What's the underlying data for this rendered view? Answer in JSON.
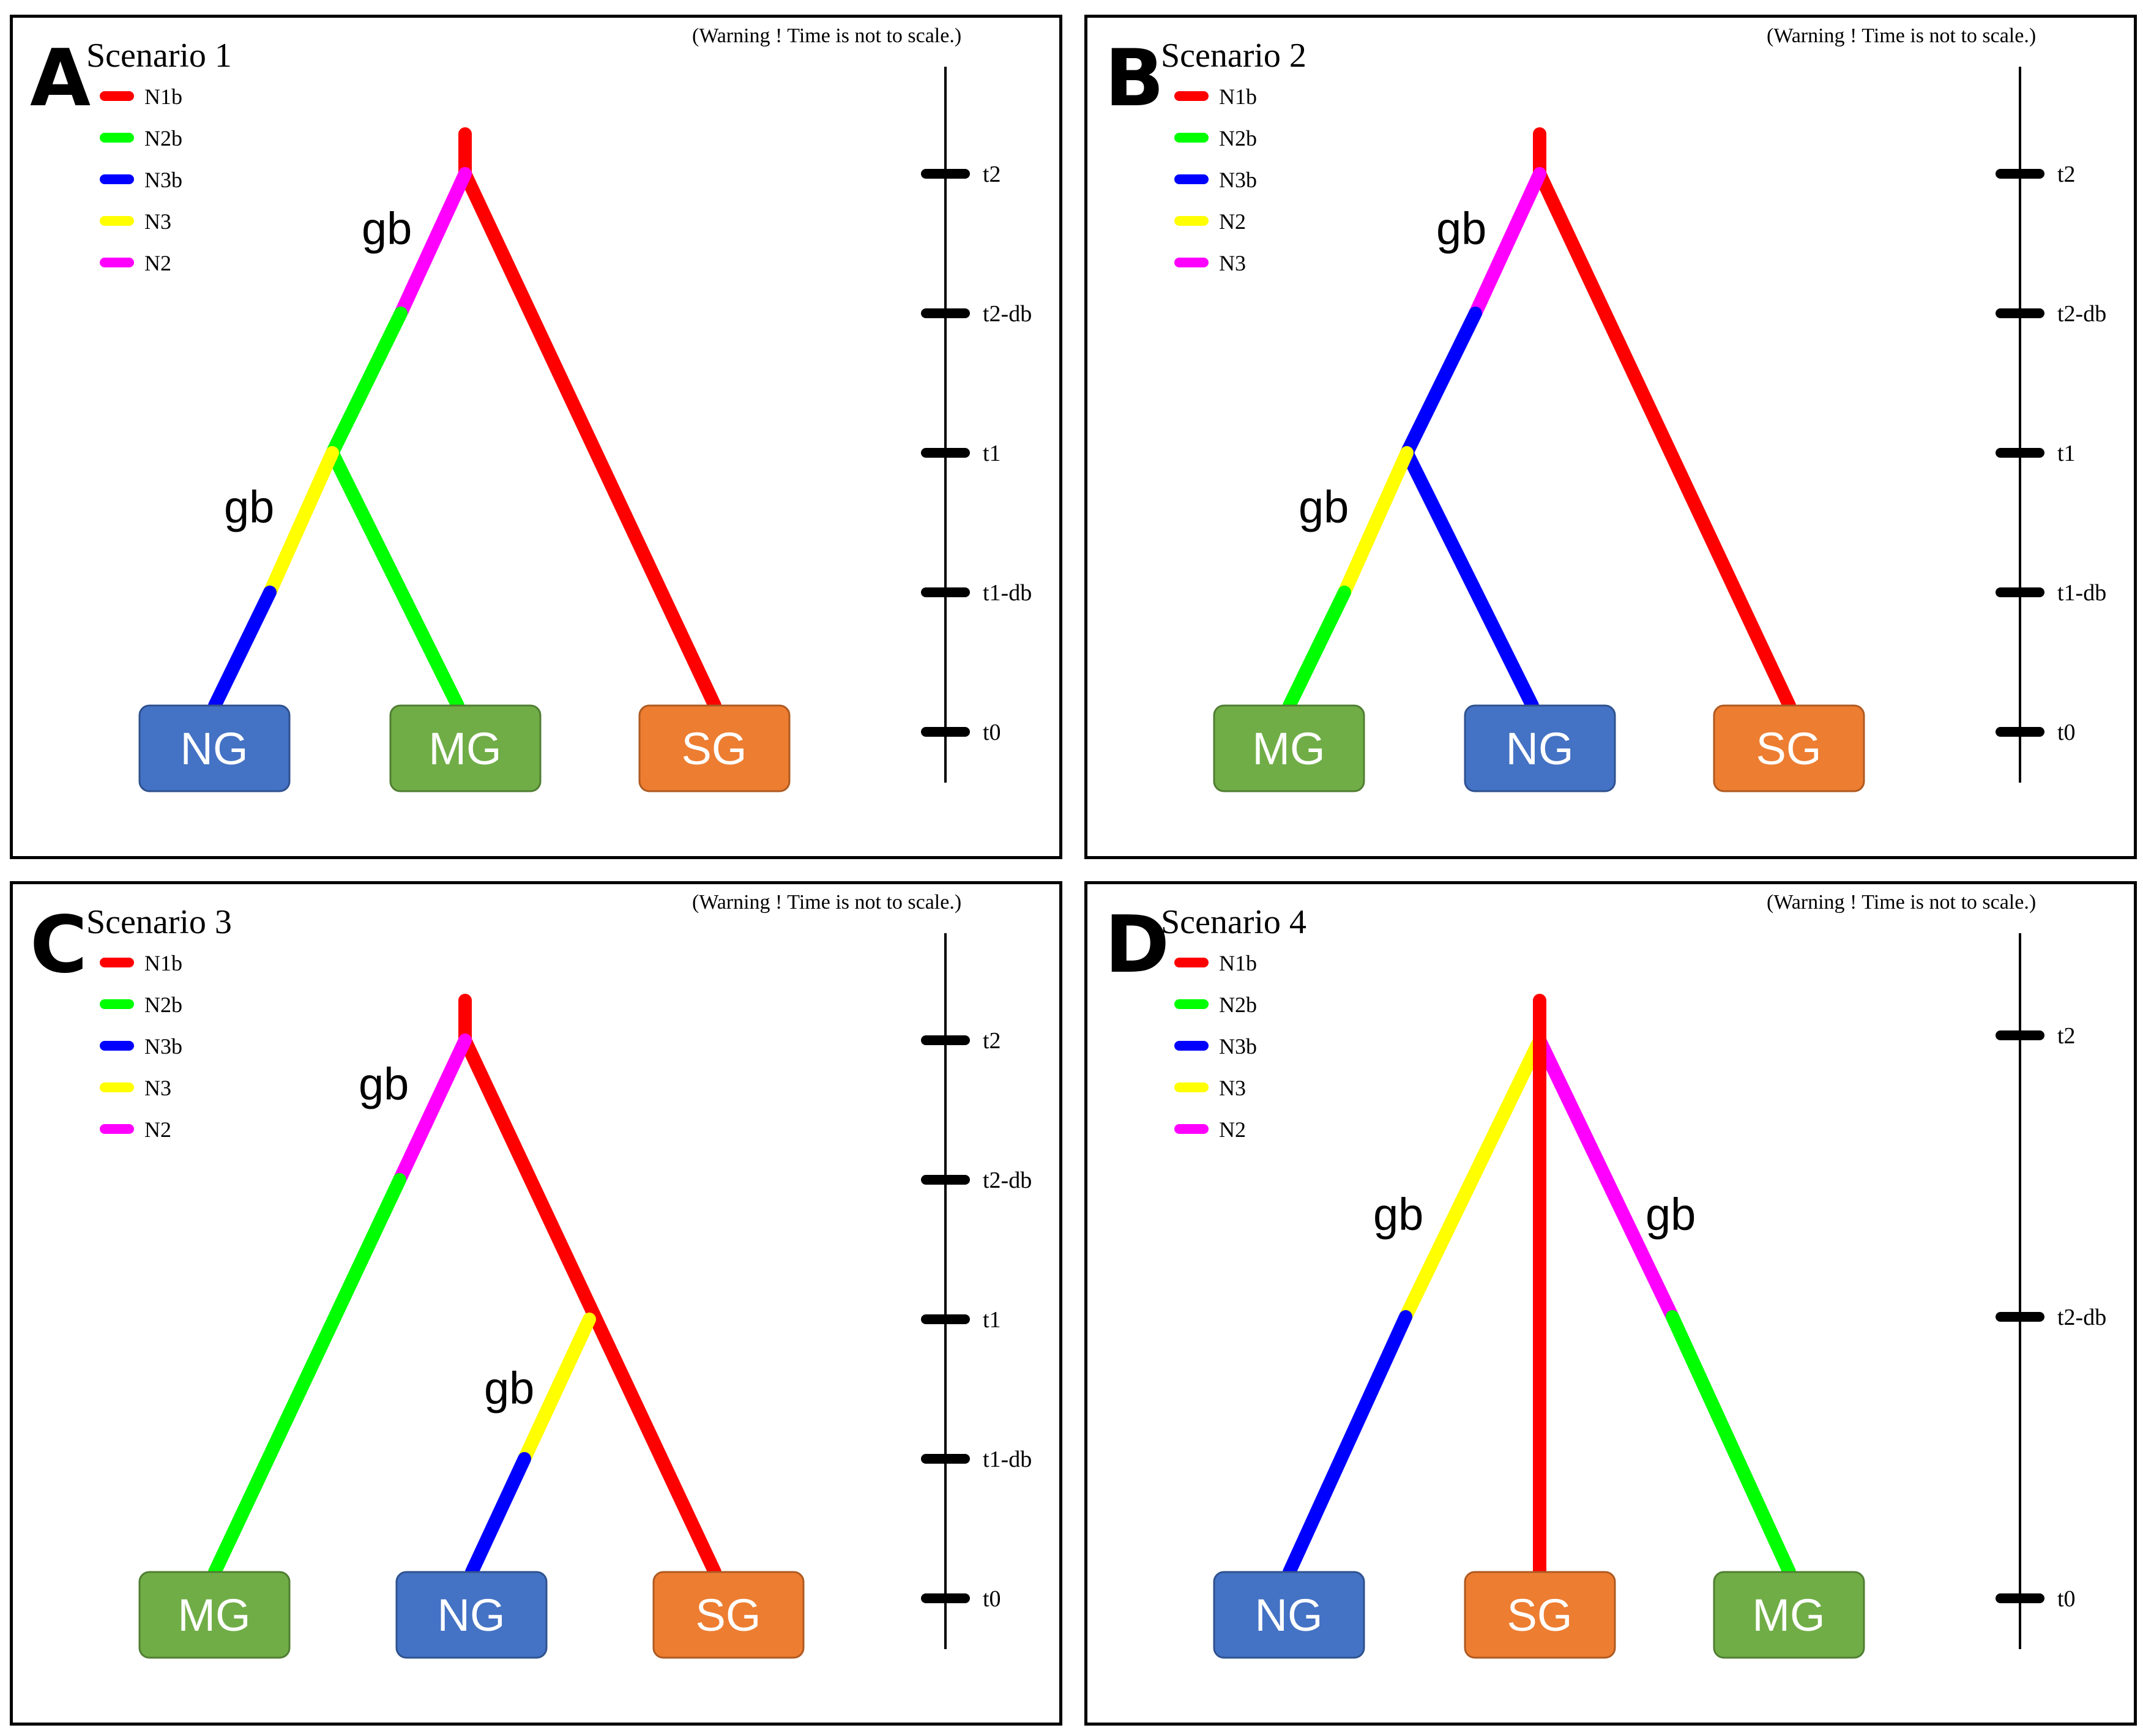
{
  "warning": "(Warning ! Time is not to scale.)",
  "gene_flow_label": "gb",
  "colors": {
    "red": "#ff0000",
    "green": "#00ff00",
    "blue": "#0000ff",
    "yellow": "#ffff00",
    "magenta": "#ff00ff",
    "NG": "#4472c4",
    "MG": "#70ad47",
    "SG": "#ed7d31"
  },
  "panels": [
    {
      "letter": "A",
      "title": "Scenario 1",
      "legend": [
        {
          "label": "N1b",
          "color": "red"
        },
        {
          "label": "N2b",
          "color": "green"
        },
        {
          "label": "N3b",
          "color": "blue"
        },
        {
          "label": "N3",
          "color": "yellow"
        },
        {
          "label": "N2",
          "color": "magenta"
        }
      ],
      "time_labels": [
        "t2",
        "t2-db",
        "t1",
        "t1-db",
        "t0"
      ],
      "populations": [
        "NG",
        "MG",
        "SG"
      ]
    },
    {
      "letter": "B",
      "title": "Scenario 2",
      "legend": [
        {
          "label": "N1b",
          "color": "red"
        },
        {
          "label": "N2b",
          "color": "green"
        },
        {
          "label": "N3b",
          "color": "blue"
        },
        {
          "label": "N2",
          "color": "yellow"
        },
        {
          "label": "N3",
          "color": "magenta"
        }
      ],
      "time_labels": [
        "t2",
        "t2-db",
        "t1",
        "t1-db",
        "t0"
      ],
      "populations": [
        "MG",
        "NG",
        "SG"
      ]
    },
    {
      "letter": "C",
      "title": "Scenario 3",
      "legend": [
        {
          "label": "N1b",
          "color": "red"
        },
        {
          "label": "N2b",
          "color": "green"
        },
        {
          "label": "N3b",
          "color": "blue"
        },
        {
          "label": "N3",
          "color": "yellow"
        },
        {
          "label": "N2",
          "color": "magenta"
        }
      ],
      "time_labels": [
        "t2",
        "t2-db",
        "t1",
        "t1-db",
        "t0"
      ],
      "populations": [
        "MG",
        "NG",
        "SG"
      ]
    },
    {
      "letter": "D",
      "title": "Scenario 4",
      "legend": [
        {
          "label": "N1b",
          "color": "red"
        },
        {
          "label": "N2b",
          "color": "green"
        },
        {
          "label": "N3b",
          "color": "blue"
        },
        {
          "label": "N3",
          "color": "yellow"
        },
        {
          "label": "N2",
          "color": "magenta"
        }
      ],
      "time_labels": [
        "t2",
        "t2-db",
        "t0"
      ],
      "populations": [
        "NG",
        "SG",
        "MG"
      ]
    }
  ]
}
